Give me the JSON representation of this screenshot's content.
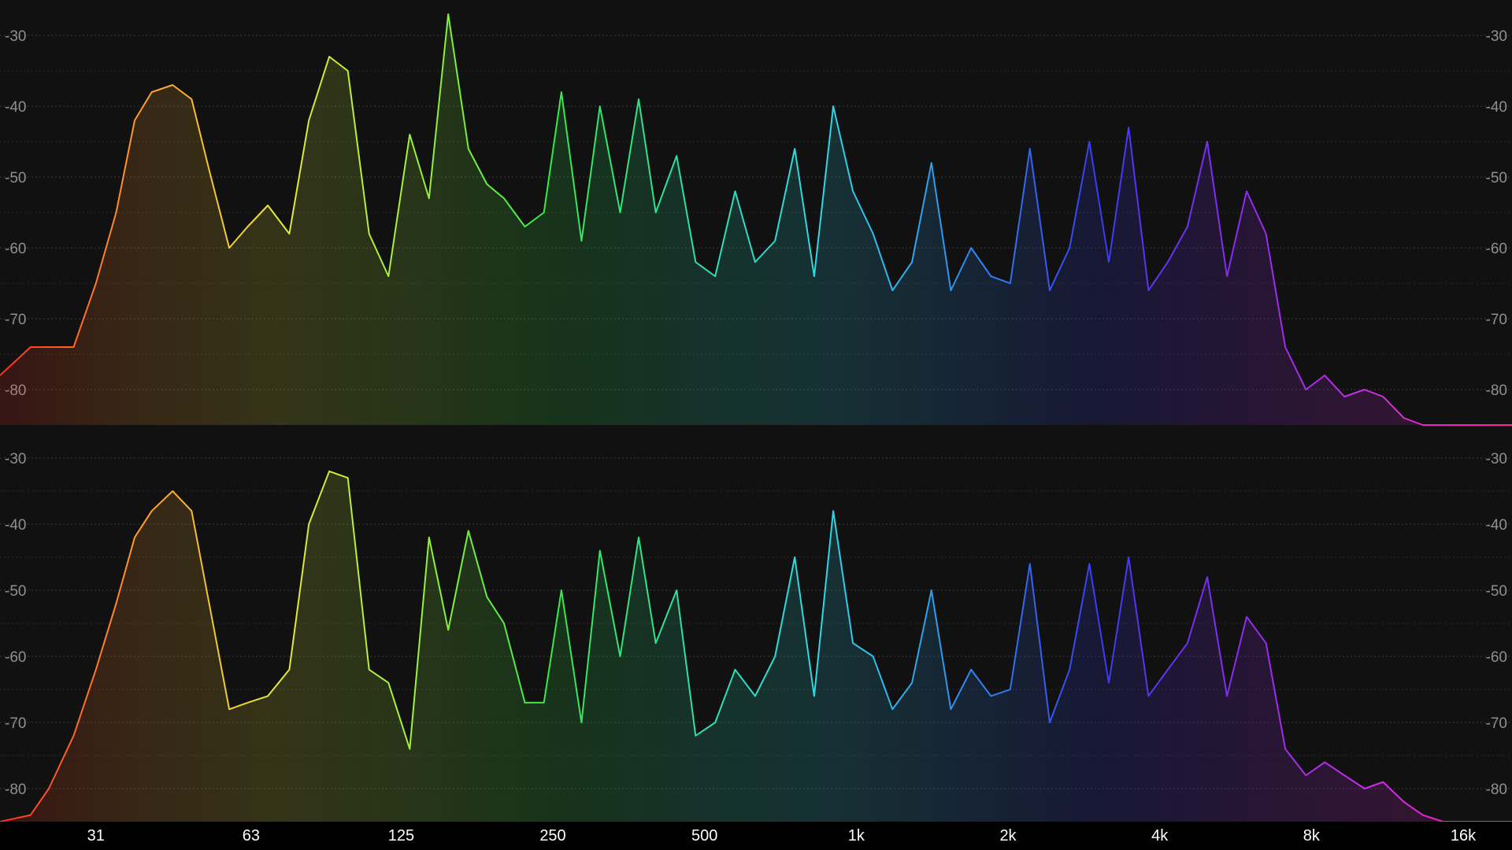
{
  "colors": {
    "background": "#111111",
    "axis_bar": "#000000",
    "gradient": [
      "#ff2d1f",
      "#ff9a2a",
      "#e8e83a",
      "#9ef23a",
      "#37e84a",
      "#2ee0a8",
      "#2fd8e8",
      "#2f8ef0",
      "#3a3cf0",
      "#8a2cf0",
      "#d02ce8",
      "#ff1f9a"
    ]
  },
  "chart_data": [
    {
      "type": "area",
      "channel": "top",
      "title": "",
      "xlabel": "",
      "ylabel": "",
      "xscale": "log",
      "xlim": [
        20,
        20000
      ],
      "ylim": [
        -85,
        -25
      ],
      "grid": true,
      "y_ticks": [
        "-30",
        "-40",
        "-50",
        "-60",
        "-70",
        "-80"
      ],
      "x": [
        20,
        23,
        25,
        28,
        31,
        34,
        37,
        40,
        44,
        48,
        52,
        57,
        62,
        68,
        75,
        82,
        90,
        98,
        108,
        118,
        130,
        142,
        155,
        170,
        185,
        200,
        220,
        240,
        260,
        285,
        310,
        340,
        370,
        400,
        440,
        480,
        525,
        575,
        630,
        690,
        755,
        825,
        900,
        985,
        1080,
        1180,
        1290,
        1410,
        1540,
        1690,
        1850,
        2020,
        2210,
        2420,
        2650,
        2900,
        3170,
        3470,
        3800,
        4150,
        4540,
        4970,
        5440,
        5950,
        6500,
        7100,
        7800,
        8500,
        9300,
        10200,
        11100,
        12200,
        13300,
        14600,
        16000,
        17500,
        20000
      ],
      "values": [
        -78,
        -74,
        -74,
        -74,
        -65,
        -55,
        -42,
        -38,
        -37,
        -39,
        -49,
        -60,
        -57,
        -54,
        -58,
        -42,
        -33,
        -35,
        -58,
        -64,
        -44,
        -53,
        -27,
        -46,
        -51,
        -53,
        -57,
        -55,
        -38,
        -59,
        -40,
        -55,
        -39,
        -55,
        -47,
        -62,
        -64,
        -52,
        -62,
        -59,
        -46,
        -64,
        -40,
        -52,
        -58,
        -66,
        -62,
        -48,
        -66,
        -60,
        -64,
        -65,
        -46,
        -66,
        -60,
        -45,
        -62,
        -43,
        -66,
        -62,
        -57,
        -45,
        -64,
        -52,
        -58,
        -74,
        -80,
        -78,
        -81,
        -80,
        -81,
        -84,
        -85,
        -85,
        -85,
        -85,
        -85
      ]
    },
    {
      "type": "area",
      "channel": "bottom",
      "title": "",
      "xlabel": "",
      "ylabel": "",
      "xscale": "log",
      "xlim": [
        20,
        20000
      ],
      "ylim": [
        -85,
        -25
      ],
      "grid": true,
      "y_ticks": [
        "-30",
        "-40",
        "-50",
        "-60",
        "-70",
        "-80"
      ],
      "x_ticks": [
        "31",
        "63",
        "125",
        "250",
        "500",
        "1k",
        "2k",
        "4k",
        "8k",
        "16k"
      ],
      "x_tick_values": [
        31,
        63,
        125,
        250,
        500,
        1000,
        2000,
        4000,
        8000,
        16000
      ],
      "x": [
        20,
        23,
        25,
        28,
        31,
        34,
        37,
        40,
        44,
        48,
        52,
        57,
        62,
        68,
        75,
        82,
        90,
        98,
        108,
        118,
        130,
        142,
        155,
        170,
        185,
        200,
        220,
        240,
        260,
        285,
        310,
        340,
        370,
        400,
        440,
        480,
        525,
        575,
        630,
        690,
        755,
        825,
        900,
        985,
        1080,
        1180,
        1290,
        1410,
        1540,
        1690,
        1850,
        2020,
        2210,
        2420,
        2650,
        2900,
        3170,
        3470,
        3800,
        4150,
        4540,
        4970,
        5440,
        5950,
        6500,
        7100,
        7800,
        8500,
        9300,
        10200,
        11100,
        12200,
        13300,
        14600,
        16000,
        17500,
        20000
      ],
      "values": [
        -88,
        -84,
        -80,
        -72,
        -62,
        -52,
        -42,
        -38,
        -35,
        -38,
        -52,
        -68,
        -67,
        -66,
        -62,
        -40,
        -32,
        -33,
        -62,
        -64,
        -74,
        -42,
        -56,
        -41,
        -51,
        -55,
        -67,
        -67,
        -50,
        -70,
        -44,
        -60,
        -42,
        -58,
        -50,
        -72,
        -70,
        -62,
        -66,
        -60,
        -45,
        -66,
        -38,
        -58,
        -60,
        -68,
        -64,
        -50,
        -68,
        -62,
        -66,
        -65,
        -46,
        -70,
        -62,
        -46,
        -64,
        -45,
        -66,
        -62,
        -58,
        -48,
        -66,
        -54,
        -58,
        -74,
        -78,
        -76,
        -78,
        -80,
        -79,
        -82,
        -84,
        -86,
        -88,
        -88,
        -88
      ]
    }
  ]
}
